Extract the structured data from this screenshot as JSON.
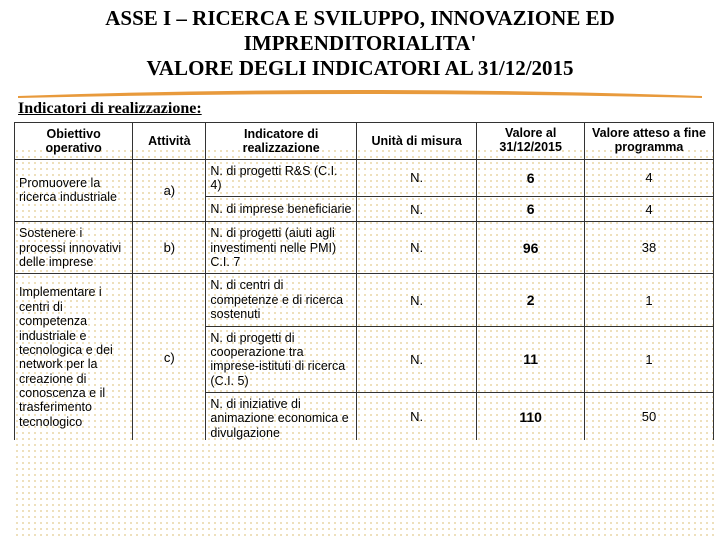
{
  "title": {
    "line1": "ASSE I – RICERCA E SVILUPPO, INNOVAZIONE ED",
    "line2": "IMPRENDITORIALITA'",
    "line3": "VALORE DEGLI INDICATORI AL 31/12/2015"
  },
  "subheader": "Indicatori di realizzazione:",
  "swoosh_color": "#e89a3c",
  "dots_color": "#e9d6a5",
  "headers": {
    "c1": "Obiettivo operativo",
    "c2": "Attività",
    "c3": "Indicatore di realizzazione",
    "c4": "Unità di misura",
    "c5": "Valore al 31/12/2015",
    "c6": "Valore atteso a fine programma"
  },
  "groups": [
    {
      "obiettivo": "Promuovere la ricerca industriale",
      "attivita": "a)",
      "rows": [
        {
          "ind": "N. di progetti R&S (C.I. 4)",
          "unita": "N.",
          "val": "6",
          "att": "4"
        },
        {
          "ind": "N. di imprese beneficiarie",
          "unita": "N.",
          "val": "6",
          "att": "4"
        }
      ]
    },
    {
      "obiettivo": "Sostenere i processi innovativi delle imprese",
      "attivita": "b)",
      "rows": [
        {
          "ind": "N. di progetti (aiuti agli investimenti nelle PMI) C.I. 7",
          "unita": "N.",
          "val": "96",
          "att": "38"
        }
      ]
    },
    {
      "obiettivo": "Implementare i centri di competenza industriale e tecnologica e dei network per la creazione di conoscenza e il trasferimento tecnologico",
      "attivita": "c)",
      "rows": [
        {
          "ind": "N. di centri di competenze e di ricerca sostenuti",
          "unita": "N.",
          "val": "2",
          "att": "1"
        },
        {
          "ind": "N. di progetti di cooperazione tra imprese-istituti di ricerca (C.I. 5)",
          "unita": "N.",
          "val": "11",
          "att": "1"
        },
        {
          "ind": "N. di iniziative di animazione economica e divulgazione",
          "unita": "N.",
          "val": "110",
          "att": "50",
          "truncated": true
        }
      ]
    }
  ]
}
